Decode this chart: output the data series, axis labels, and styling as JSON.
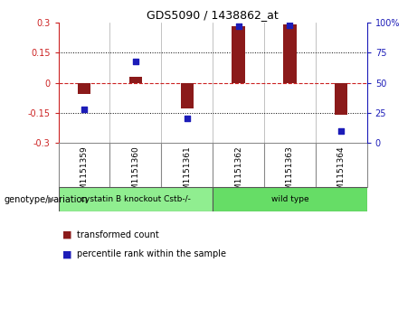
{
  "title": "GDS5090 / 1438862_at",
  "samples": [
    "GSM1151359",
    "GSM1151360",
    "GSM1151361",
    "GSM1151362",
    "GSM1151363",
    "GSM1151364"
  ],
  "transformed_count": [
    -0.055,
    0.03,
    -0.13,
    0.285,
    0.295,
    -0.16
  ],
  "percentile_rank": [
    28,
    68,
    20,
    97,
    98,
    10
  ],
  "ylim_left": [
    -0.3,
    0.3
  ],
  "ylim_right": [
    0,
    100
  ],
  "yticks_left": [
    -0.3,
    -0.15,
    0,
    0.15,
    0.3
  ],
  "yticks_right": [
    0,
    25,
    50,
    75,
    100
  ],
  "bar_color": "#8B1A1A",
  "dot_color": "#1C1CB8",
  "zero_line_color": "#cc2222",
  "dotted_line_color": "#000000",
  "groups": [
    {
      "label": "cystatin B knockout Cstb-/-",
      "start": 0,
      "end": 2,
      "color": "#90EE90"
    },
    {
      "label": "wild type",
      "start": 3,
      "end": 5,
      "color": "#66DD66"
    }
  ],
  "legend_label_bar": "transformed count",
  "legend_label_dot": "percentile rank within the sample",
  "genotype_label": "genotype/variation",
  "background_color": "#ffffff",
  "tick_label_fontsize": 7,
  "bar_width": 0.25
}
